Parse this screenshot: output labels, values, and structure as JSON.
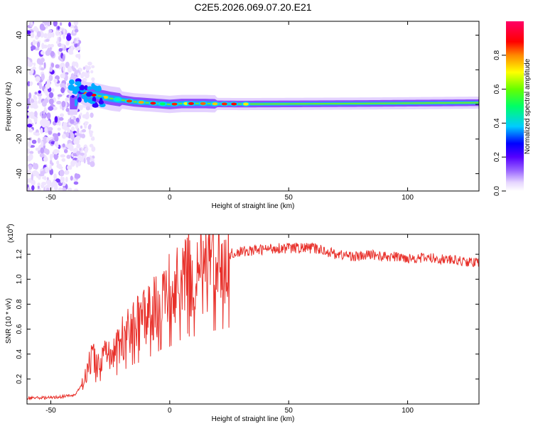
{
  "title": "C2E5.2026.069.07.20.E21",
  "chart_data": [
    {
      "type": "heatmap",
      "title": "C2E5.2026.069.07.20.E21",
      "xlabel": "Height of straight line (km)",
      "ylabel": "Frequency (Hz)",
      "xlim": [
        -60,
        130
      ],
      "ylim": [
        -50,
        48
      ],
      "xticks": [
        "-50",
        "0",
        "50",
        "100"
      ],
      "yticks": [
        "40",
        "20",
        "0",
        "-20",
        "-40"
      ],
      "colorbar": {
        "label": "Normalized spectral amplitude",
        "range": [
          0,
          1
        ],
        "ticks": [
          "0.0",
          "0.2",
          "0.4",
          "0.6",
          "0.8"
        ],
        "colormap": [
          "#ffffff",
          "#cc99ff",
          "#6600ff",
          "#0000ff",
          "#00ccff",
          "#00ff66",
          "#66ff00",
          "#ffff00",
          "#ff8800",
          "#ff0000",
          "#ff0066"
        ]
      },
      "ridge": {
        "x": [
          -38,
          -35,
          -30,
          -25,
          -20,
          -15,
          -10,
          -5,
          0,
          5,
          10,
          15,
          20,
          30,
          50,
          80,
          110,
          130
        ],
        "freq": [
          8,
          6,
          5,
          3.5,
          2.5,
          1.5,
          1,
          0.5,
          0,
          0.5,
          0.5,
          0.5,
          0.3,
          0.2,
          0.3,
          0.5,
          0.8,
          1
        ]
      }
    },
    {
      "type": "line",
      "xlabel": "Height of straight line (km)",
      "ylabel": "SNR (10 * v/v)",
      "yscale_label": "(x10",
      "yscale_exp": "4",
      "xlim": [
        -60,
        130
      ],
      "ylim": [
        0,
        13600
      ],
      "xticks": [
        "-50",
        "0",
        "50",
        "100"
      ],
      "yticks": [
        "0.2",
        "0.4",
        "0.6",
        "0.8",
        "1.0",
        "1.2"
      ],
      "color": "#e8302a",
      "series": [
        {
          "x": [
            -60,
            -50,
            -40,
            -37,
            -35,
            -33,
            -30,
            -28,
            -25,
            -22,
            -20,
            -18,
            -15,
            -12,
            -10,
            -8,
            -5,
            -3,
            0,
            3,
            5,
            7,
            8,
            9,
            10,
            12,
            15,
            18,
            20,
            25,
            30,
            35,
            40,
            45,
            50,
            55,
            60,
            65,
            70,
            75,
            80,
            85,
            90,
            95,
            100,
            105,
            110,
            115,
            120,
            125,
            130
          ],
          "y": [
            500,
            500,
            700,
            1500,
            2500,
            3800,
            3200,
            4200,
            3600,
            4600,
            5200,
            5600,
            6300,
            6600,
            6900,
            7500,
            8200,
            8800,
            9000,
            9600,
            10200,
            11400,
            10800,
            9800,
            10600,
            10800,
            11200,
            11500,
            11600,
            12000,
            12200,
            12300,
            12400,
            12500,
            12500,
            12500,
            12500,
            12300,
            12000,
            11900,
            11800,
            12000,
            11800,
            11800,
            11700,
            11700,
            11700,
            11600,
            11500,
            11400,
            11300
          ]
        }
      ]
    }
  ]
}
